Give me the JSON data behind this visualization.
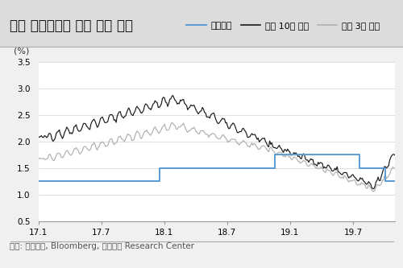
{
  "title": "한국 기준금리와 주요 금리 동향",
  "ylabel": "(%)",
  "footnote": "자료: 한국은행, Bloomberg, 대신증권 Research Center",
  "ylim": [
    0.5,
    3.5
  ],
  "yticks": [
    0.5,
    1.0,
    1.5,
    2.0,
    2.5,
    3.0,
    3.5
  ],
  "xtick_labels": [
    "17.1",
    "17.7",
    "18.1",
    "18.7",
    "19.1",
    "19.7"
  ],
  "xtick_pos": [
    0,
    6,
    12,
    18,
    24,
    30
  ],
  "xlim": [
    0,
    34
  ],
  "title_bg_color": "#dcdcdc",
  "plot_bg_color": "#ffffff",
  "fig_bg_color": "#f0f0f0",
  "footnote_bg_color": "#f0f0f0",
  "base_rate_color": "#5b9bd5",
  "bond10_color": "#1a1a1a",
  "bond3_color": "#b0b0b0",
  "legend_labels": [
    "기준금리",
    "국고 10년 금리",
    "국고 3년 금리"
  ],
  "grid_color": "#d0d0d0",
  "spine_color": "#999999",
  "tick_label_size": 7.5,
  "legend_fontsize": 8,
  "title_fontsize": 12,
  "footnote_fontsize": 7.5,
  "ylabel_fontsize": 8
}
